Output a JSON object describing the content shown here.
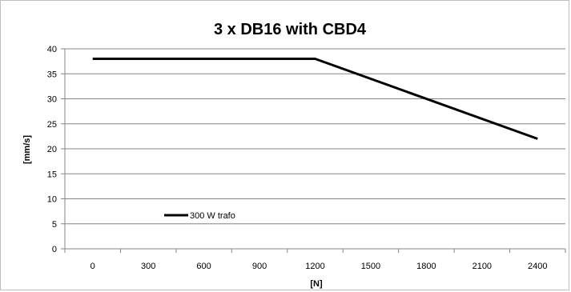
{
  "chart_data": {
    "type": "line",
    "title": "3 x DB16 with CBD4",
    "xlabel": "[N]",
    "ylabel": "[mm/s]",
    "categories": [
      "0",
      "300",
      "600",
      "900",
      "1200",
      "1500",
      "1800",
      "2100",
      "2400"
    ],
    "ylim": [
      0,
      40
    ],
    "yticks": [
      "0",
      "5",
      "10",
      "15",
      "20",
      "25",
      "30",
      "35",
      "40"
    ],
    "grid": true,
    "legend_position": "lower-left-inside",
    "series": [
      {
        "name": "300 W trafo",
        "color": "#000000",
        "points": [
          {
            "x": "0",
            "y": 38
          },
          {
            "x": "1200",
            "y": 38
          },
          {
            "x": "2400",
            "y": 22
          }
        ]
      }
    ]
  }
}
